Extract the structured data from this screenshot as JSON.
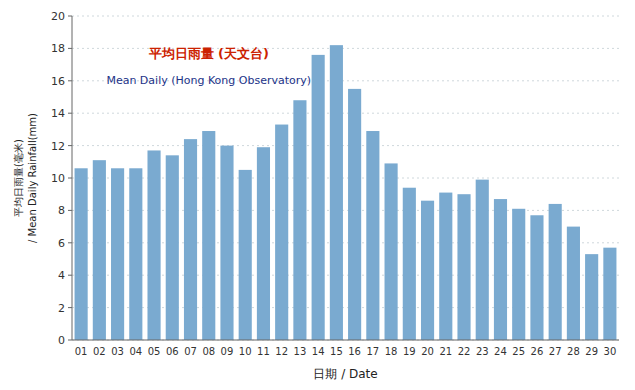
{
  "chart_data": {
    "type": "bar",
    "categories": [
      "01",
      "02",
      "03",
      "04",
      "05",
      "06",
      "07",
      "08",
      "09",
      "10",
      "11",
      "12",
      "13",
      "14",
      "15",
      "16",
      "17",
      "18",
      "19",
      "20",
      "21",
      "22",
      "23",
      "24",
      "25",
      "26",
      "27",
      "28",
      "29",
      "30"
    ],
    "values": [
      10.6,
      11.1,
      10.6,
      10.6,
      11.7,
      11.4,
      12.4,
      12.9,
      12.0,
      10.5,
      11.9,
      13.3,
      14.8,
      17.6,
      18.2,
      15.5,
      12.9,
      10.9,
      9.4,
      8.6,
      9.1,
      9.0,
      9.9,
      8.7,
      8.1,
      7.7,
      8.4,
      7.0,
      5.3,
      5.7
    ],
    "color": "#7aaad0",
    "x_label": "日期 / Date",
    "y_label": "平均日雨量(毫米)\n/ Mean Daily Rainfall(mm)",
    "ylim": [
      0,
      20
    ],
    "yticks": [
      0,
      2,
      4,
      6,
      8,
      10,
      12,
      14,
      16,
      18,
      20
    ],
    "grid": true,
    "annotations": [
      {
        "text": "平均日雨量 (天文台)",
        "color": "#cc2200"
      },
      {
        "text": "Mean Daily (Hong Kong Observatory)",
        "color": "#223388"
      }
    ]
  }
}
